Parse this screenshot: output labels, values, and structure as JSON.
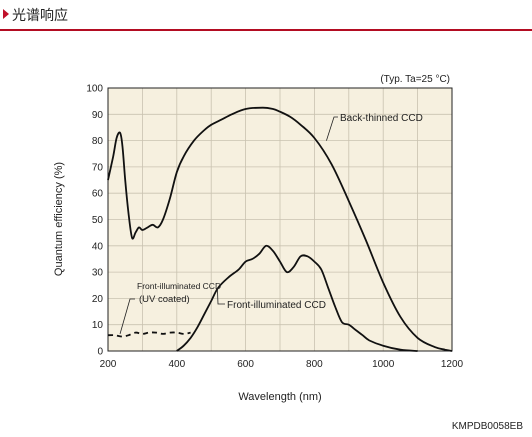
{
  "header": {
    "title": "光谱响应"
  },
  "chart_data": {
    "type": "line",
    "conditions": "(Typ. Ta=25 °C)",
    "xlabel": "Wavelength (nm)",
    "ylabel": "Quantum efficiency (%)",
    "xlim": [
      200,
      1200
    ],
    "ylim": [
      0,
      100
    ],
    "xticks": [
      200,
      400,
      600,
      800,
      1000,
      1200
    ],
    "yticks": [
      0,
      10,
      20,
      30,
      40,
      50,
      60,
      70,
      80,
      90,
      100
    ],
    "grid": true,
    "series": [
      {
        "name": "Back-thinned CCD",
        "style": "solid",
        "x": [
          200,
          215,
          225,
          235,
          242,
          250,
          260,
          270,
          280,
          290,
          300,
          315,
          330,
          345,
          360,
          380,
          400,
          420,
          450,
          480,
          500,
          530,
          560,
          600,
          650,
          680,
          700,
          730,
          760,
          800,
          850,
          900,
          950,
          1000,
          1050,
          1100,
          1150,
          1180,
          1200
        ],
        "y": [
          65,
          74,
          81,
          83,
          78,
          65,
          52,
          43,
          45,
          47,
          46,
          47,
          48,
          47,
          50,
          58,
          68,
          74,
          80,
          84,
          86,
          88,
          90,
          92,
          92.5,
          92,
          91,
          89,
          86,
          81,
          71,
          57,
          42,
          26,
          13,
          5,
          1.5,
          0.5,
          0
        ]
      },
      {
        "name": "Front-illuminated CCD",
        "style": "solid",
        "x": [
          400,
          420,
          440,
          460,
          480,
          500,
          520,
          550,
          580,
          600,
          620,
          640,
          660,
          680,
          700,
          720,
          740,
          760,
          780,
          800,
          820,
          840,
          860,
          880,
          900,
          920,
          940,
          960,
          1000,
          1050,
          1100
        ],
        "y": [
          0,
          2,
          5,
          9,
          14,
          19,
          24,
          28,
          31,
          34,
          35,
          37,
          40,
          38,
          34,
          30,
          32,
          36,
          36,
          34,
          31,
          24,
          17,
          11,
          10,
          8,
          6,
          4,
          2,
          0.5,
          0
        ]
      },
      {
        "name": "Front-illuminated CCD (UV coated)",
        "style": "dashed",
        "x": [
          200,
          220,
          240,
          260,
          280,
          300,
          320,
          340,
          360,
          380,
          400,
          420,
          440
        ],
        "y": [
          6,
          6,
          5.5,
          6,
          7,
          6.5,
          7,
          7,
          6.5,
          7,
          7,
          6.5,
          7
        ]
      }
    ],
    "annotations": [
      {
        "text": "Back-thinned CCD"
      },
      {
        "text": "Front-illuminated CCD"
      },
      {
        "line1": "Front-illuminated CCD",
        "line2": "(UV coated)"
      }
    ],
    "doc_code": "KMPDB0058EB"
  }
}
